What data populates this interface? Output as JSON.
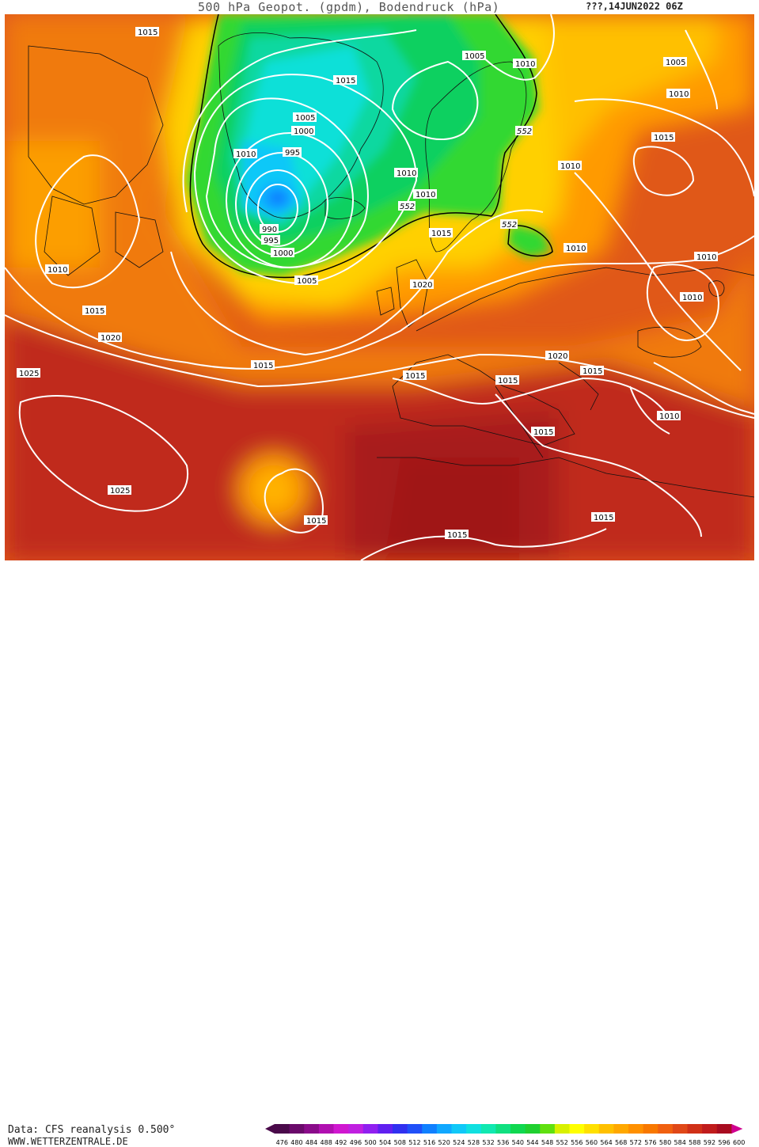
{
  "title": "500 hPa Geopot. (gpdm), Bodendruck (hPa)",
  "date": "???,14JUN2022 06Z",
  "footer": {
    "data_source": "Data: CFS reanalysis 0.500°",
    "website": "WWW.WETTERZENTRALE.DE"
  },
  "legend": {
    "values": [
      "476",
      "480",
      "484",
      "488",
      "492",
      "496",
      "500",
      "504",
      "508",
      "512",
      "516",
      "520",
      "524",
      "528",
      "532",
      "536",
      "540",
      "544",
      "548",
      "552",
      "556",
      "560",
      "564",
      "568",
      "572",
      "576",
      "580",
      "584",
      "588",
      "592",
      "596",
      "600"
    ],
    "colors": [
      "#4a0a4a",
      "#6a0a6a",
      "#8a0c8a",
      "#b010b0",
      "#d018d0",
      "#c020e0",
      "#9020f0",
      "#6020f0",
      "#3030f0",
      "#2050f8",
      "#1080ff",
      "#10a8ff",
      "#10c8f8",
      "#10e0e0",
      "#10e8b0",
      "#10e080",
      "#10d850",
      "#20d030",
      "#60e010",
      "#d8f000",
      "#ffff00",
      "#ffe000",
      "#ffc000",
      "#ffa800",
      "#ff9000",
      "#f87800",
      "#f06010",
      "#e04818",
      "#d03018",
      "#c01c1c",
      "#a80c20",
      "#d00090"
    ]
  },
  "isobars": [
    {
      "value": "1015",
      "key": "a"
    },
    {
      "value": "1005",
      "key": "b"
    },
    {
      "value": "1010",
      "key": "c"
    },
    {
      "value": "1005",
      "key": "d"
    },
    {
      "value": "1015",
      "key": "e"
    },
    {
      "value": "1005",
      "key": "f"
    },
    {
      "value": "1000",
      "key": "g"
    },
    {
      "value": "1010",
      "key": "h"
    },
    {
      "value": "995",
      "key": "i"
    },
    {
      "value": "1010",
      "key": "j"
    },
    {
      "value": "1010",
      "key": "k"
    },
    {
      "value": "1015",
      "key": "l"
    },
    {
      "value": "1010",
      "key": "m"
    },
    {
      "value": "990",
      "key": "n"
    },
    {
      "value": "995",
      "key": "o"
    },
    {
      "value": "1000",
      "key": "p"
    },
    {
      "value": "1015",
      "key": "q"
    },
    {
      "value": "1010",
      "key": "r"
    },
    {
      "value": "1005",
      "key": "s"
    },
    {
      "value": "1020",
      "key": "t"
    },
    {
      "value": "1010",
      "key": "u"
    },
    {
      "value": "1010",
      "key": "v"
    },
    {
      "value": "1010",
      "key": "w"
    },
    {
      "value": "1015",
      "key": "x"
    },
    {
      "value": "1020",
      "key": "y"
    },
    {
      "value": "1010",
      "key": "z"
    },
    {
      "value": "1020",
      "key": "aa"
    },
    {
      "value": "1015",
      "key": "ab"
    },
    {
      "value": "1025",
      "key": "ac"
    },
    {
      "value": "1015",
      "key": "ad"
    },
    {
      "value": "1015",
      "key": "ae"
    },
    {
      "value": "1015",
      "key": "af"
    },
    {
      "value": "1010",
      "key": "ag"
    },
    {
      "value": "1015",
      "key": "ah"
    },
    {
      "value": "1025",
      "key": "ai"
    },
    {
      "value": "1015",
      "key": "aj"
    },
    {
      "value": "1015",
      "key": "ak"
    },
    {
      "value": "1015",
      "key": "al"
    }
  ],
  "geopotential_labels": [
    {
      "value": "552",
      "key": "g1"
    },
    {
      "value": "552",
      "key": "g2"
    },
    {
      "value": "552",
      "key": "g3"
    }
  ]
}
